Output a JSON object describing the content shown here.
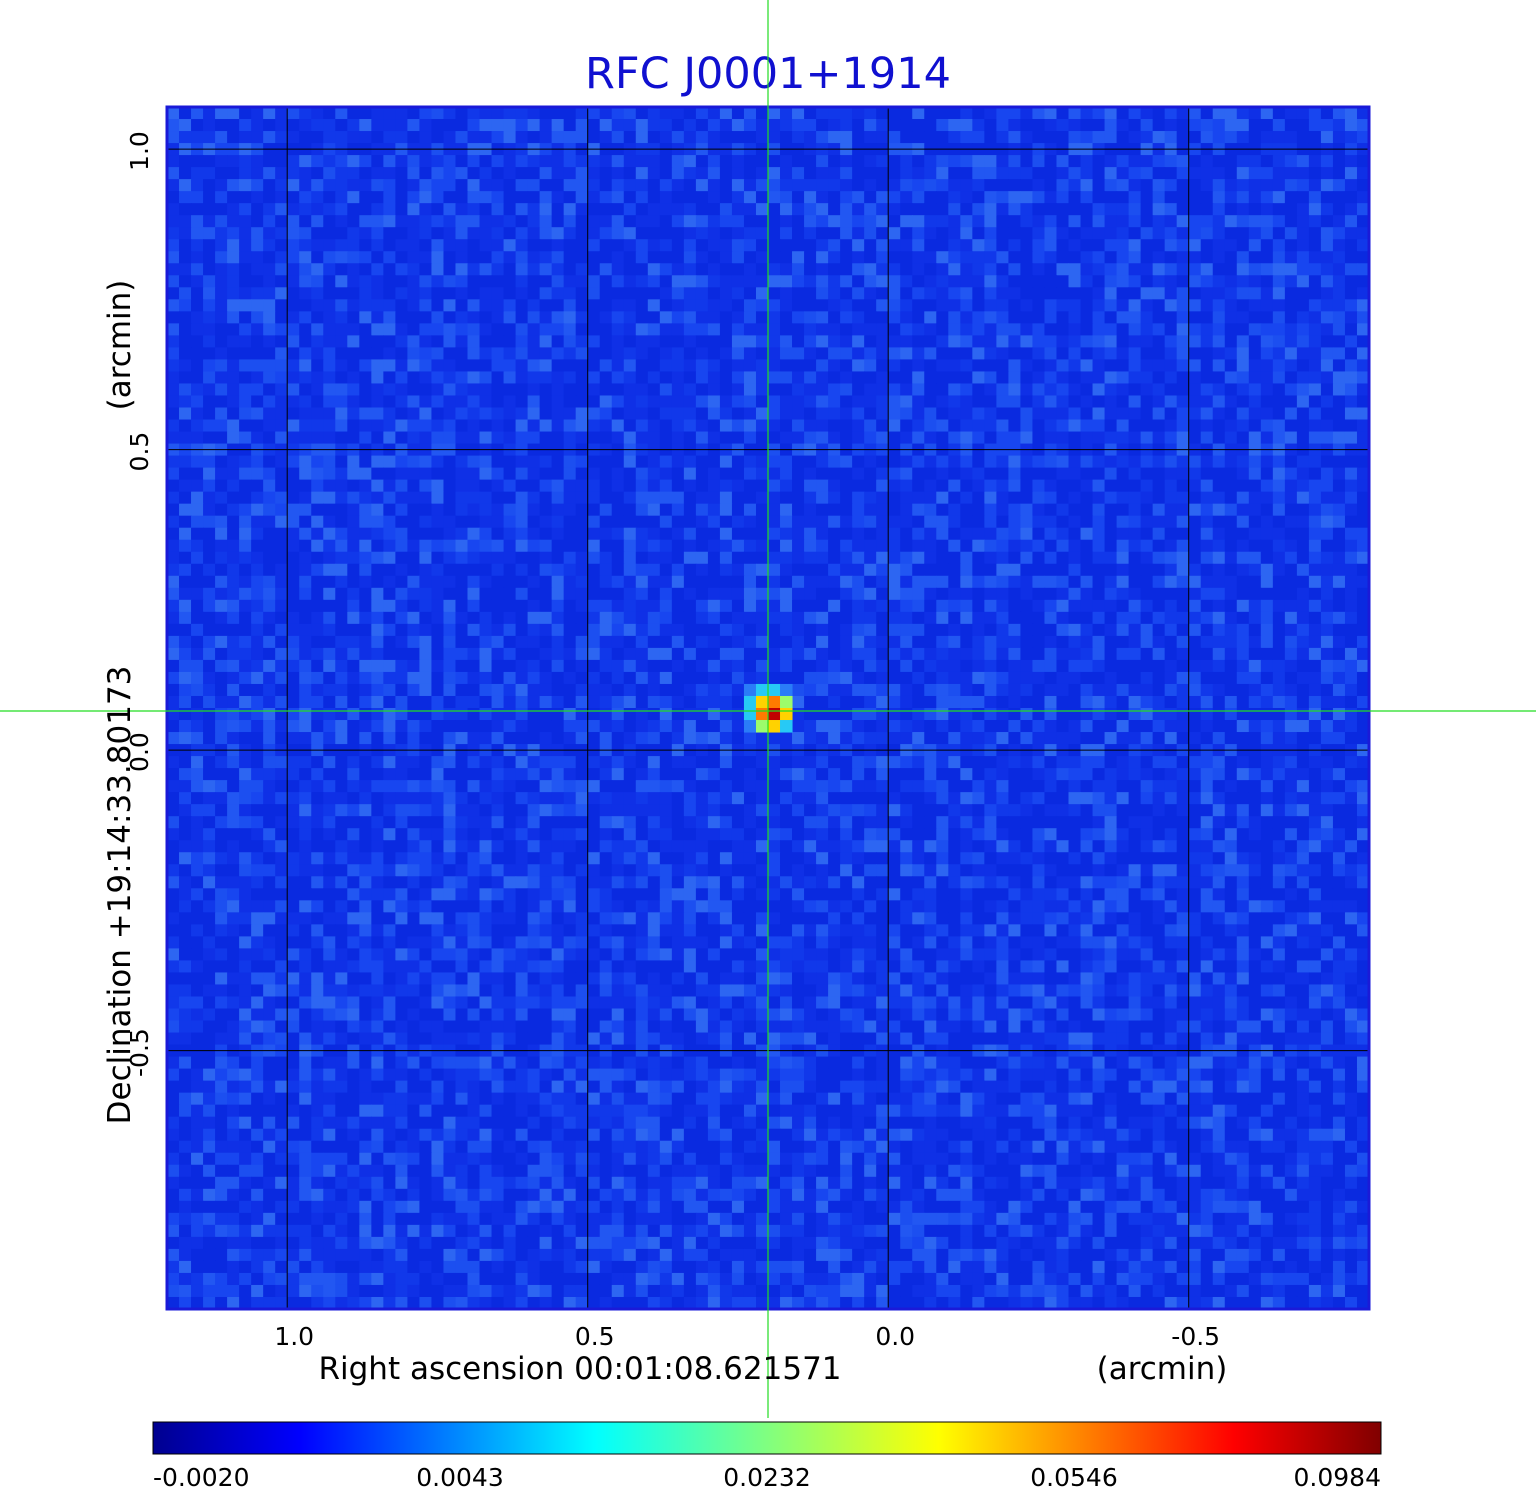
{
  "chart_data": {
    "type": "heatmap",
    "title": "RFC J0001+1914",
    "xlabel": "Right ascension  00:01:08.621571",
    "xunit": "(arcmin)",
    "ylabel": "Declination  +19:14:33.80173",
    "yunit": "(arcmin)",
    "x_ticks": [
      "1.0",
      "0.5",
      "0.0",
      "-0.5"
    ],
    "x_tick_values": [
      1.0,
      0.5,
      0.0,
      -0.5
    ],
    "y_ticks": [
      "1.0",
      "0.5",
      "0.0",
      "-0.5"
    ],
    "y_tick_values": [
      1.0,
      0.5,
      0.0,
      -0.5
    ],
    "xlim": [
      1.2,
      -0.8
    ],
    "ylim": [
      -0.93,
      1.07
    ],
    "grid": true,
    "source_peak": {
      "x": 0.2,
      "y": 0.07
    },
    "crosshair": {
      "x": 0.2,
      "y": 0.065
    },
    "colormap": "jet",
    "colorbar_ticks": [
      "-0.0020",
      "0.0043",
      "0.0232",
      "0.0546",
      "0.0984"
    ],
    "colorbar_values": [
      -0.002,
      0.0043,
      0.0232,
      0.0546,
      0.0984
    ]
  },
  "colors": {
    "title": "#1010d0",
    "crosshair": "#22dd22",
    "grid": "#000000",
    "frame": "#1a1ad8"
  }
}
